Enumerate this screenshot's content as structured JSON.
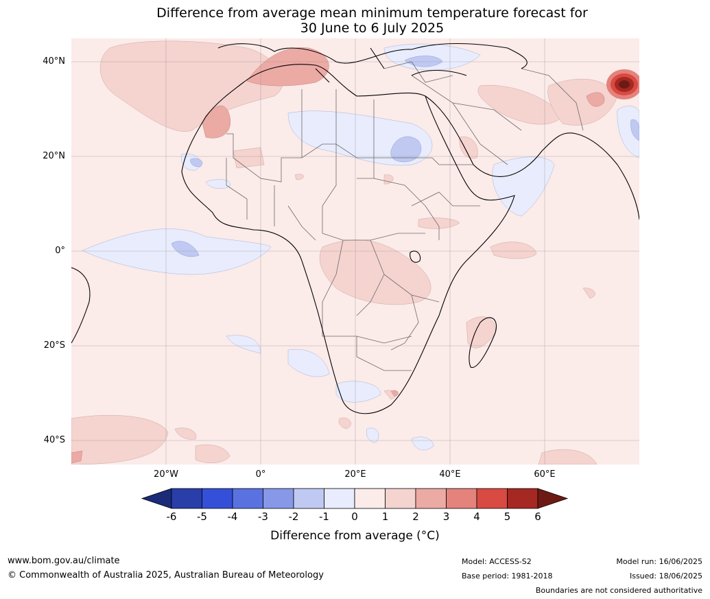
{
  "title": {
    "line1": "Difference from average mean minimum temperature forecast for",
    "line2": "30 June to 6 July 2025"
  },
  "map": {
    "lat_labels": [
      "40°N",
      "20°N",
      "0°",
      "20°S",
      "40°S"
    ],
    "lon_labels": [
      "20°W",
      "0°",
      "20°E",
      "40°E",
      "60°E"
    ]
  },
  "colorbar": {
    "ticks": [
      "-6",
      "-5",
      "-4",
      "-3",
      "-2",
      "-1",
      "0",
      "1",
      "2",
      "3",
      "4",
      "5",
      "6"
    ],
    "colors": [
      "#1b2b7a",
      "#2a3eaa",
      "#3450d8",
      "#5a72e0",
      "#8798e8",
      "#c0c9f2",
      "#e8ecfc",
      "#fbebe9",
      "#f5d3cf",
      "#ecaaa5",
      "#e4827c",
      "#d94a42",
      "#a52822",
      "#6e1a14"
    ],
    "title": "Difference from average (°C)"
  },
  "footer": {
    "website": "www.bom.gov.au/climate",
    "copyright": "© Commonwealth of Australia 2025, Australian Bureau of Meteorology",
    "model": "Model: ACCESS-S2",
    "base_period": "Base period: 1981-2018",
    "model_run": "Model run: 16/06/2025",
    "issued": "Issued: 18/06/2025",
    "boundaries": "Boundaries are not considered authoritative"
  }
}
